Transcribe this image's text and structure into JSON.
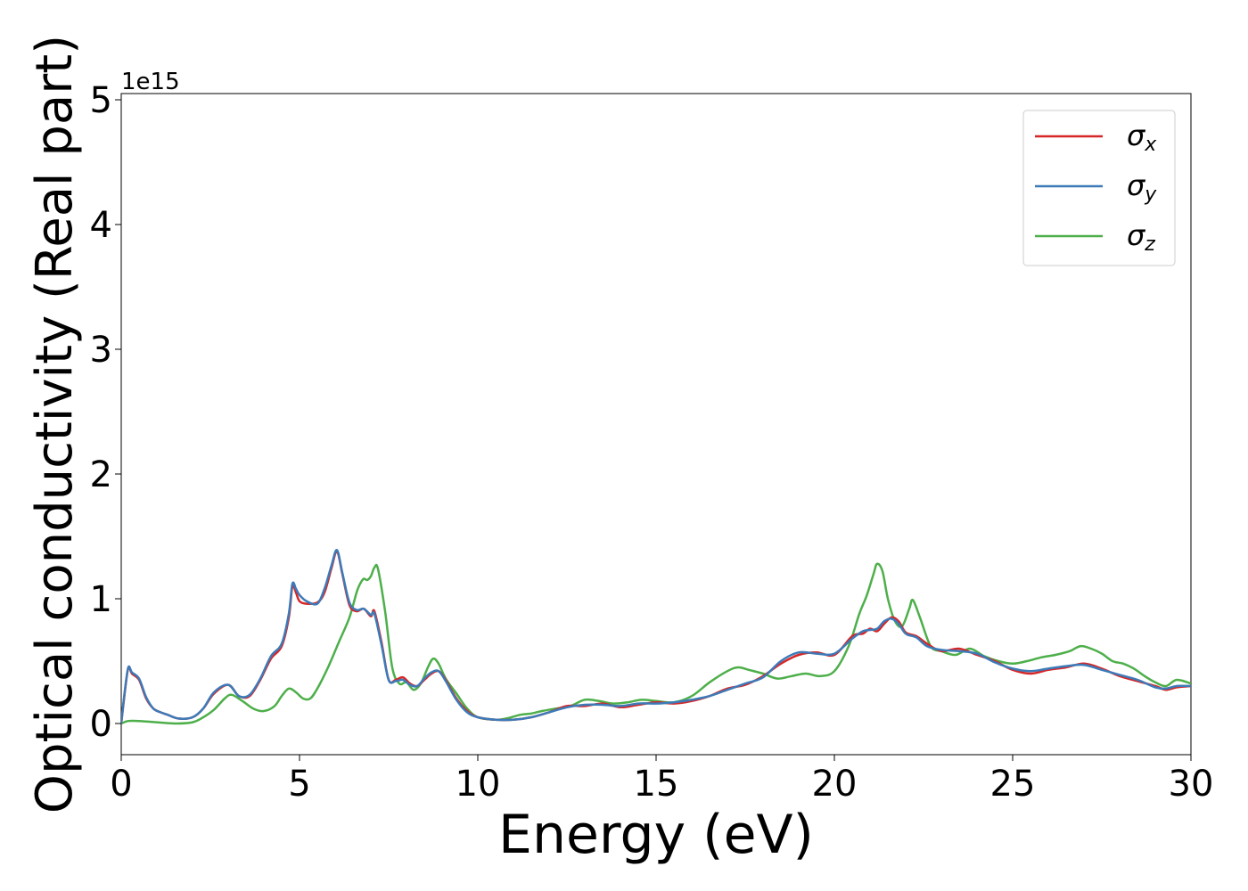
{
  "chart_data": {
    "type": "line",
    "title": "",
    "xlabel": "Energy (eV)",
    "ylabel": "Optical conductivity (Real part)",
    "y_offset_label": "1e15",
    "y_scale_factor": 1000000000000000.0,
    "xlim": [
      0,
      30
    ],
    "ylim": [
      -0.25,
      5.05
    ],
    "x_ticks": [
      0,
      5,
      10,
      15,
      20,
      25,
      30
    ],
    "x_tick_labels": [
      "0",
      "5",
      "10",
      "15",
      "20",
      "25",
      "30"
    ],
    "y_ticks": [
      0,
      1,
      2,
      3,
      4,
      5
    ],
    "y_tick_labels": [
      "0",
      "1",
      "2",
      "3",
      "4",
      "5"
    ],
    "grid": false,
    "legend_position": "top-right",
    "series": [
      {
        "name": "σx",
        "symbol": "σ",
        "subscript": "x",
        "color": "#d62728",
        "x": [
          0,
          0.1,
          0.2,
          0.3,
          0.5,
          0.7,
          0.9,
          1.1,
          1.3,
          1.6,
          2.0,
          2.3,
          2.6,
          3.0,
          3.3,
          3.6,
          3.9,
          4.2,
          4.5,
          4.7,
          4.8,
          4.9,
          5.0,
          5.2,
          5.5,
          5.7,
          5.9,
          6.05,
          6.2,
          6.4,
          6.6,
          6.8,
          7.0,
          7.1,
          7.3,
          7.5,
          7.7,
          7.9,
          8.1,
          8.3,
          8.5,
          8.7,
          8.9,
          9.1,
          9.4,
          9.7,
          10.0,
          10.5,
          11.0,
          11.5,
          12.0,
          12.5,
          13.0,
          13.5,
          14.0,
          14.5,
          15.0,
          15.5,
          16.0,
          16.5,
          17.0,
          17.5,
          18.0,
          18.5,
          19.0,
          19.5,
          20.0,
          20.5,
          20.8,
          21.0,
          21.2,
          21.4,
          21.6,
          21.8,
          22.0,
          22.3,
          22.6,
          23.0,
          23.5,
          24.0,
          24.5,
          25.0,
          25.5,
          26.0,
          26.5,
          27.0,
          27.5,
          28.0,
          28.5,
          29.0,
          29.3,
          29.6,
          30.0
        ],
        "y": [
          0.0,
          0.25,
          0.45,
          0.4,
          0.35,
          0.2,
          0.12,
          0.09,
          0.07,
          0.04,
          0.05,
          0.12,
          0.24,
          0.31,
          0.22,
          0.22,
          0.35,
          0.52,
          0.62,
          0.85,
          1.1,
          1.05,
          0.98,
          0.96,
          0.97,
          1.05,
          1.25,
          1.38,
          1.2,
          0.95,
          0.9,
          0.92,
          0.86,
          0.9,
          0.65,
          0.35,
          0.35,
          0.37,
          0.32,
          0.3,
          0.35,
          0.4,
          0.42,
          0.35,
          0.2,
          0.1,
          0.05,
          0.03,
          0.03,
          0.05,
          0.09,
          0.14,
          0.14,
          0.16,
          0.13,
          0.15,
          0.17,
          0.16,
          0.18,
          0.22,
          0.28,
          0.31,
          0.38,
          0.48,
          0.55,
          0.57,
          0.55,
          0.7,
          0.72,
          0.76,
          0.74,
          0.8,
          0.85,
          0.82,
          0.73,
          0.7,
          0.64,
          0.58,
          0.6,
          0.55,
          0.5,
          0.43,
          0.4,
          0.43,
          0.45,
          0.48,
          0.44,
          0.38,
          0.34,
          0.3,
          0.27,
          0.29,
          0.3
        ]
      },
      {
        "name": "σy",
        "symbol": "σ",
        "subscript": "y",
        "color": "#3c7ab8",
        "x": [
          0,
          0.1,
          0.2,
          0.3,
          0.5,
          0.7,
          0.9,
          1.1,
          1.3,
          1.6,
          2.0,
          2.3,
          2.6,
          3.0,
          3.3,
          3.6,
          3.9,
          4.2,
          4.5,
          4.7,
          4.8,
          4.9,
          5.0,
          5.2,
          5.5,
          5.7,
          5.9,
          6.05,
          6.2,
          6.4,
          6.6,
          6.8,
          7.0,
          7.1,
          7.3,
          7.5,
          7.7,
          7.9,
          8.1,
          8.3,
          8.5,
          8.7,
          8.9,
          9.1,
          9.4,
          9.7,
          10.0,
          10.5,
          11.0,
          11.5,
          12.0,
          12.5,
          13.0,
          13.5,
          14.0,
          14.5,
          15.0,
          15.5,
          16.0,
          16.5,
          17.0,
          17.5,
          18.0,
          18.5,
          19.0,
          19.5,
          20.0,
          20.5,
          20.8,
          21.0,
          21.2,
          21.4,
          21.6,
          21.8,
          22.0,
          22.3,
          22.6,
          23.0,
          23.5,
          24.0,
          24.5,
          25.0,
          25.5,
          26.0,
          26.5,
          27.0,
          27.5,
          28.0,
          28.5,
          29.0,
          29.3,
          29.6,
          30.0
        ],
        "y": [
          0.0,
          0.26,
          0.45,
          0.41,
          0.36,
          0.21,
          0.12,
          0.09,
          0.07,
          0.04,
          0.05,
          0.12,
          0.25,
          0.31,
          0.22,
          0.23,
          0.36,
          0.54,
          0.64,
          0.88,
          1.12,
          1.08,
          1.03,
          0.98,
          0.96,
          1.08,
          1.27,
          1.39,
          1.21,
          0.97,
          0.91,
          0.92,
          0.87,
          0.88,
          0.63,
          0.35,
          0.34,
          0.35,
          0.31,
          0.3,
          0.36,
          0.41,
          0.42,
          0.34,
          0.19,
          0.09,
          0.05,
          0.03,
          0.03,
          0.05,
          0.09,
          0.13,
          0.15,
          0.15,
          0.14,
          0.16,
          0.16,
          0.17,
          0.19,
          0.22,
          0.27,
          0.32,
          0.37,
          0.5,
          0.57,
          0.56,
          0.56,
          0.68,
          0.74,
          0.75,
          0.76,
          0.82,
          0.84,
          0.8,
          0.72,
          0.69,
          0.62,
          0.59,
          0.58,
          0.56,
          0.49,
          0.44,
          0.42,
          0.44,
          0.46,
          0.47,
          0.43,
          0.39,
          0.35,
          0.29,
          0.28,
          0.3,
          0.3
        ]
      },
      {
        "name": "σz",
        "symbol": "σ",
        "subscript": "z",
        "color": "#4daf4a",
        "x": [
          0,
          0.2,
          0.5,
          1.0,
          1.5,
          2.0,
          2.3,
          2.6,
          2.9,
          3.1,
          3.4,
          3.7,
          4.0,
          4.3,
          4.5,
          4.7,
          4.9,
          5.1,
          5.3,
          5.5,
          5.8,
          6.1,
          6.4,
          6.6,
          6.7,
          6.8,
          6.9,
          7.0,
          7.1,
          7.2,
          7.4,
          7.6,
          7.8,
          8.0,
          8.2,
          8.4,
          8.6,
          8.75,
          8.9,
          9.1,
          9.4,
          9.7,
          10.0,
          10.5,
          10.8,
          11.2,
          11.5,
          11.8,
          12.2,
          12.6,
          13.0,
          13.4,
          13.8,
          14.2,
          14.6,
          15.0,
          15.5,
          16.0,
          16.5,
          17.0,
          17.3,
          17.6,
          18.0,
          18.4,
          18.8,
          19.2,
          19.6,
          20.0,
          20.4,
          20.7,
          20.9,
          21.1,
          21.2,
          21.35,
          21.5,
          21.7,
          21.9,
          22.1,
          22.2,
          22.4,
          22.7,
          23.0,
          23.4,
          23.8,
          24.2,
          24.6,
          25.0,
          25.4,
          25.8,
          26.2,
          26.6,
          26.9,
          27.2,
          27.5,
          27.8,
          28.1,
          28.4,
          28.7,
          29.0,
          29.3,
          29.6,
          30.0
        ],
        "y": [
          0.0,
          0.02,
          0.02,
          0.01,
          0.0,
          0.01,
          0.05,
          0.11,
          0.2,
          0.23,
          0.18,
          0.12,
          0.1,
          0.14,
          0.22,
          0.28,
          0.25,
          0.2,
          0.2,
          0.28,
          0.45,
          0.65,
          0.85,
          1.05,
          1.12,
          1.16,
          1.15,
          1.18,
          1.25,
          1.24,
          0.9,
          0.45,
          0.32,
          0.33,
          0.27,
          0.32,
          0.45,
          0.52,
          0.48,
          0.36,
          0.24,
          0.12,
          0.05,
          0.03,
          0.04,
          0.07,
          0.08,
          0.1,
          0.12,
          0.14,
          0.19,
          0.18,
          0.16,
          0.17,
          0.19,
          0.18,
          0.17,
          0.22,
          0.33,
          0.42,
          0.45,
          0.43,
          0.4,
          0.36,
          0.38,
          0.4,
          0.38,
          0.42,
          0.62,
          0.88,
          1.02,
          1.2,
          1.28,
          1.22,
          1.0,
          0.82,
          0.78,
          0.92,
          0.99,
          0.85,
          0.62,
          0.58,
          0.55,
          0.6,
          0.54,
          0.5,
          0.48,
          0.5,
          0.53,
          0.55,
          0.58,
          0.62,
          0.6,
          0.56,
          0.5,
          0.48,
          0.44,
          0.38,
          0.33,
          0.3,
          0.35,
          0.32
        ]
      }
    ]
  }
}
